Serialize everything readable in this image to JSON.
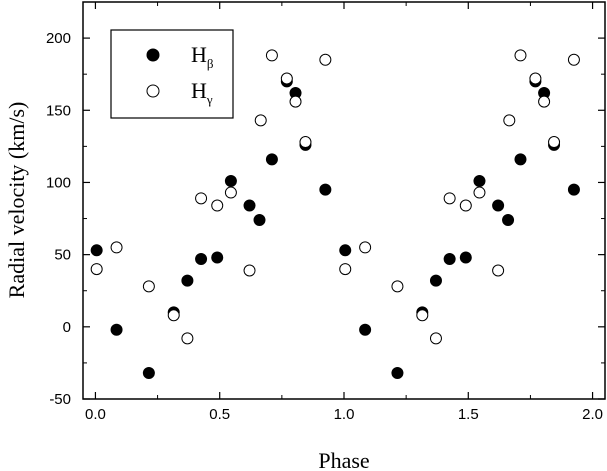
{
  "chart_data": {
    "type": "scatter",
    "xlabel": "Phase",
    "ylabel": "Radial velocity (km/s)",
    "xlim": [
      -0.05,
      2.05
    ],
    "ylim": [
      -50,
      225
    ],
    "x_ticks": [
      0.0,
      0.5,
      1.0,
      1.5,
      2.0
    ],
    "x_tick_labels": [
      "0.0",
      "0.5",
      "1.0",
      "1.5",
      "2.0"
    ],
    "y_ticks": [
      -50,
      0,
      50,
      100,
      150,
      200
    ],
    "y_tick_labels": [
      "-50",
      "0",
      "50",
      "100",
      "150",
      "200"
    ],
    "grid": false,
    "legend_position": "top-left",
    "series": [
      {
        "name": "H",
        "subscript": "β",
        "marker": "filled-circle",
        "color": "#000000",
        "points": [
          [
            0.005,
            53
          ],
          [
            0.085,
            -2
          ],
          [
            0.215,
            -32
          ],
          [
            0.315,
            10
          ],
          [
            0.37,
            32
          ],
          [
            0.425,
            47
          ],
          [
            0.49,
            48
          ],
          [
            0.545,
            101
          ],
          [
            0.62,
            84
          ],
          [
            0.66,
            74
          ],
          [
            0.71,
            116
          ],
          [
            0.77,
            170
          ],
          [
            0.805,
            162
          ],
          [
            0.845,
            126
          ],
          [
            0.925,
            95
          ],
          [
            1.005,
            53
          ],
          [
            1.085,
            -2
          ],
          [
            1.215,
            -32
          ],
          [
            1.315,
            10
          ],
          [
            1.37,
            32
          ],
          [
            1.425,
            47
          ],
          [
            1.49,
            48
          ],
          [
            1.545,
            101
          ],
          [
            1.62,
            84
          ],
          [
            1.66,
            74
          ],
          [
            1.71,
            116
          ],
          [
            1.77,
            170
          ],
          [
            1.805,
            162
          ],
          [
            1.845,
            126
          ],
          [
            1.925,
            95
          ]
        ]
      },
      {
        "name": "H",
        "subscript": "γ",
        "marker": "open-circle",
        "color": "#000000",
        "points": [
          [
            0.005,
            40
          ],
          [
            0.085,
            55
          ],
          [
            0.215,
            28
          ],
          [
            0.315,
            8
          ],
          [
            0.37,
            -8
          ],
          [
            0.425,
            89
          ],
          [
            0.49,
            84
          ],
          [
            0.545,
            93
          ],
          [
            0.62,
            39
          ],
          [
            0.665,
            143
          ],
          [
            0.71,
            188
          ],
          [
            0.77,
            172
          ],
          [
            0.805,
            156
          ],
          [
            0.845,
            128
          ],
          [
            0.925,
            185
          ],
          [
            1.005,
            40
          ],
          [
            1.085,
            55
          ],
          [
            1.215,
            28
          ],
          [
            1.315,
            8
          ],
          [
            1.37,
            -8
          ],
          [
            1.425,
            89
          ],
          [
            1.49,
            84
          ],
          [
            1.545,
            93
          ],
          [
            1.62,
            39
          ],
          [
            1.665,
            143
          ],
          [
            1.71,
            188
          ],
          [
            1.77,
            172
          ],
          [
            1.805,
            156
          ],
          [
            1.845,
            128
          ],
          [
            1.925,
            185
          ]
        ]
      }
    ]
  }
}
